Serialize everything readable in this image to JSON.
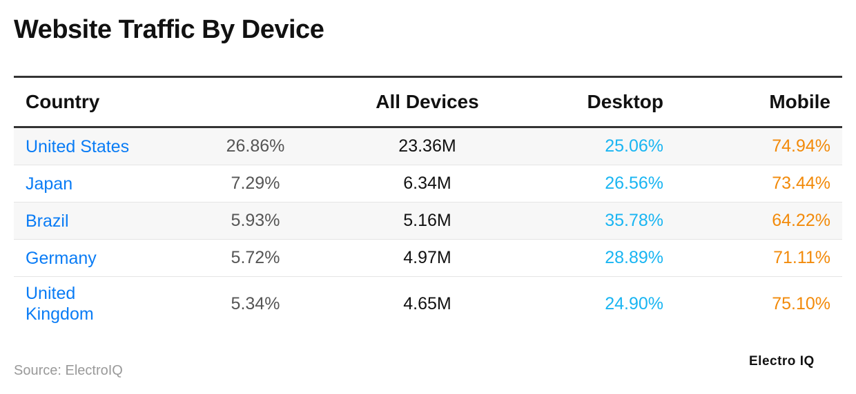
{
  "title": "Website Traffic By Device",
  "table": {
    "headers": [
      "Country",
      "",
      "All Devices",
      "Desktop",
      "Mobile"
    ],
    "rows": [
      {
        "country": "United States",
        "share": "26.86%",
        "all": "23.36M",
        "desktop": "25.06%",
        "mobile": "74.94%"
      },
      {
        "country": "Japan",
        "share": "7.29%",
        "all": "6.34M",
        "desktop": "26.56%",
        "mobile": "73.44%"
      },
      {
        "country": "Brazil",
        "share": "5.93%",
        "all": "5.16M",
        "desktop": "35.78%",
        "mobile": "64.22%"
      },
      {
        "country": "Germany",
        "share": "5.72%",
        "all": "4.97M",
        "desktop": "28.89%",
        "mobile": "71.11%"
      },
      {
        "country": "United Kingdom",
        "share": "5.34%",
        "all": "4.65M",
        "desktop": "24.90%",
        "mobile": "75.10%"
      }
    ]
  },
  "source": "Source: ElectroIQ",
  "logo": "Electro IQ",
  "colors": {
    "country": "#0a7cf5",
    "desktop": "#19b5f2",
    "mobile": "#f28a0a"
  }
}
